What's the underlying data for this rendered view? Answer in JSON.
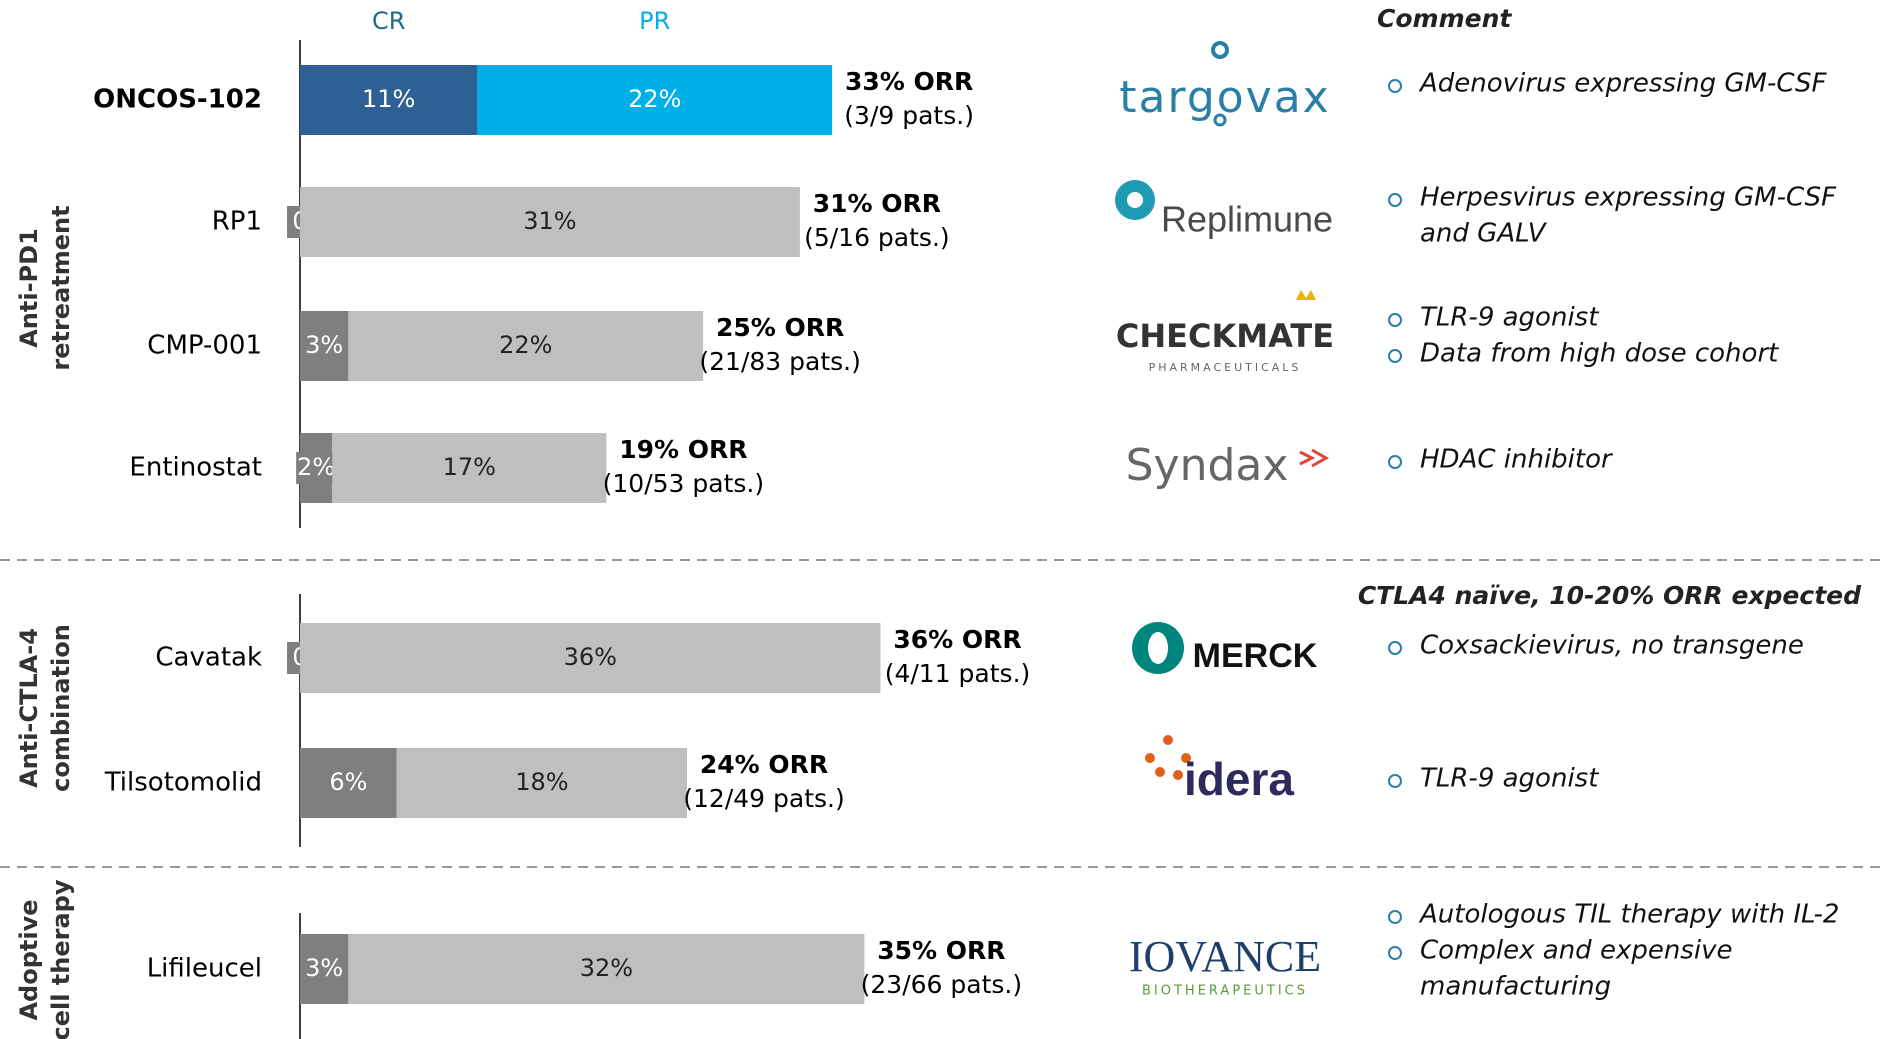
{
  "chart_data": {
    "type": "bar",
    "orientation": "horizontal",
    "stacked": true,
    "categories": [
      "ONCOS-102",
      "RP1",
      "CMP-001",
      "Entinostat",
      "Cavatak",
      "Tilsotomolid",
      "Lifileucel"
    ],
    "series": [
      {
        "name": "CR",
        "color": "#1f6b8c",
        "colors": [
          "#2e6096",
          "#7f7f7f",
          "#7f7f7f",
          "#7f7f7f",
          "#7f7f7f",
          "#7f7f7f",
          "#7f7f7f"
        ],
        "values": [
          11,
          0,
          3,
          2,
          0,
          6,
          3
        ],
        "value_labels": [
          "11%",
          "0",
          "3%",
          "2%",
          "0",
          "6%",
          "3%"
        ]
      },
      {
        "name": "PR",
        "color": "#00aee8",
        "colors": [
          "#00aee8",
          "#bfbfbf",
          "#bfbfbf",
          "#bfbfbf",
          "#bfbfbf",
          "#bfbfbf",
          "#bfbfbf"
        ],
        "values": [
          22,
          31,
          22,
          17,
          36,
          18,
          32
        ],
        "value_labels": [
          "22%",
          "31%",
          "22%",
          "17%",
          "36%",
          "18%",
          "32%"
        ]
      }
    ],
    "orr_labels": [
      "33% ORR",
      "31% ORR",
      "25% ORR",
      "19% ORR",
      "36% ORR",
      "24% ORR",
      "35% ORR"
    ],
    "patient_labels": [
      "(3/9 pats.)",
      "(5/16 pats.)",
      "(21/83 pats.)",
      "(10/53 pats.)",
      "(4/11 pats.)",
      "(12/49 pats.)",
      "(23/66 pats.)"
    ],
    "xlim": [
      0,
      40
    ],
    "groups": [
      [
        "Anti-PD1",
        "retreatment"
      ],
      [
        "Anti-CTLA-4",
        "combination"
      ],
      [
        "Adoptive",
        "cell therapy"
      ]
    ],
    "logos": [
      [
        "targovax"
      ],
      [
        "Replimune"
      ],
      [
        "CHECKMATE",
        "PHARMACEUTICALS"
      ],
      [
        "Syndax"
      ],
      [
        "MERCK"
      ],
      [
        "idera"
      ],
      [
        "IOVANCE",
        "BIOTHERAPEUTICS"
      ]
    ],
    "comment_header": "Comment",
    "comment_subheader": "CTLA4 naïve, 10-20% ORR expected",
    "comments": [
      [
        [
          "Adenovirus expressing GM-CSF"
        ]
      ],
      [
        [
          "Herpesvirus expressing GM-CSF",
          "and GALV"
        ]
      ],
      [
        [
          "TLR-9 agonist"
        ],
        [
          "Data from high dose cohort"
        ]
      ],
      [
        [
          "HDAC inhibitor"
        ]
      ],
      [
        [
          "Coxsackievirus, no transgene"
        ]
      ],
      [
        [
          "TLR-9 agonist"
        ]
      ],
      [
        [
          "Autologous TIL therapy with IL-2"
        ],
        [
          "Complex and expensive",
          "manufacturing"
        ]
      ]
    ]
  }
}
